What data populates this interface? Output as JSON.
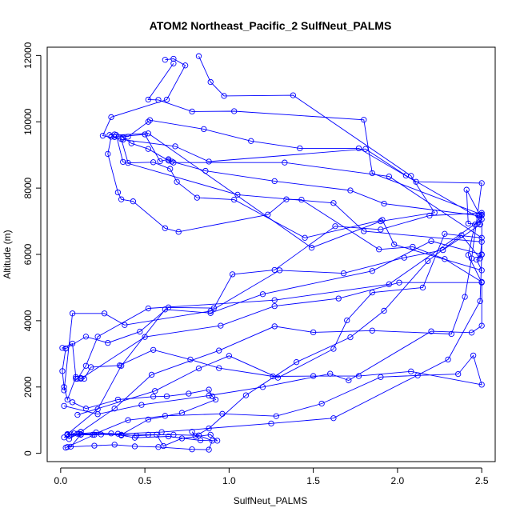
{
  "chart_data": {
    "type": "line",
    "title": "ATOM2 Northeast_Pacific_2 SulfNeut_PALMS",
    "xlabel": "SulfNeut_PALMS",
    "ylabel": "Altitude (m)",
    "xlim": [
      -0.08,
      2.58
    ],
    "ylim": [
      -250,
      12250
    ],
    "xticks": [
      0.0,
      0.5,
      1.0,
      1.5,
      2.0,
      2.5
    ],
    "xtick_labels": [
      "0.0",
      "0.5",
      "1.0",
      "1.5",
      "2.0",
      "2.5"
    ],
    "yticks": [
      0,
      2000,
      4000,
      6000,
      8000,
      10000,
      12000
    ],
    "ytick_labels": [
      "0",
      "2000",
      "4000",
      "6000",
      "8000",
      "10000",
      "12000"
    ],
    "grid": false,
    "legend": "none",
    "color": "#0000ff",
    "marker": "open-circle",
    "series": [
      {
        "x": [
          0.62,
          0.67,
          0.74,
          0.63,
          0.3,
          0.25,
          0.37,
          0.68,
          0.88,
          1.81,
          2.05,
          2.5,
          1.95,
          1.27,
          0.52,
          0.22,
          0.15,
          0.1
        ],
        "y": [
          11870,
          11900,
          11700,
          10670,
          10140,
          9580,
          9460,
          9260,
          8800,
          9180,
          8380,
          7060,
          5100,
          4620,
          4370,
          3520,
          2640,
          2250
        ]
      },
      {
        "x": [
          0.82,
          0.89,
          0.97,
          1.38,
          2.08,
          2.22,
          1.9,
          1.49,
          0.52,
          0.33,
          0.37,
          1.05,
          1.62,
          1.8,
          2.5,
          2.49,
          2.38,
          2.18,
          1.92,
          1.72,
          1.4,
          1.1,
          0.88,
          0.8,
          0.78
        ],
        "y": [
          11980,
          11200,
          10780,
          10800,
          8370,
          7260,
          7000,
          6200,
          9650,
          9600,
          8790,
          7800,
          7550,
          6700,
          6380,
          5880,
          6580,
          5800,
          4300,
          3500,
          2750,
          1750,
          750,
          520,
          650
        ]
      },
      {
        "x": [
          0.67,
          0.52,
          0.58,
          0.78,
          1.03,
          1.8,
          1.85,
          2.5,
          2.46,
          2.42,
          2.5,
          2.01,
          1.65,
          1.27,
          0.95,
          0.5,
          0.12
        ],
        "y": [
          11760,
          10670,
          10660,
          10310,
          10320,
          10060,
          8450,
          7200,
          6900,
          5980,
          5150,
          5150,
          4670,
          4440,
          3850,
          3510,
          2250
        ]
      },
      {
        "x": [
          0.29,
          0.32,
          0.4,
          0.52,
          0.53,
          0.85,
          1.13,
          1.42,
          1.77,
          2.11,
          2.5,
          2.44,
          2.4,
          2.32,
          1.85,
          1.5,
          1.27,
          0.94,
          0.54,
          0.32,
          0.12,
          0.05
        ],
        "y": [
          9600,
          9620,
          9550,
          10000,
          10050,
          9780,
          9420,
          9200,
          9200,
          8190,
          8150,
          5880,
          4720,
          3600,
          3700,
          3650,
          3830,
          3100,
          2370,
          1350,
          650,
          430
        ]
      },
      {
        "x": [
          0.37,
          0.42,
          0.52,
          0.64,
          0.86,
          1.27,
          1.72,
          1.92,
          2.48,
          2.49,
          2.42,
          2.41,
          2.49,
          2.5,
          2.5,
          2.2,
          1.85,
          1.2,
          0.89,
          0.62,
          0.36,
          0.22,
          0.04
        ],
        "y": [
          9530,
          9350,
          9180,
          8830,
          8520,
          8210,
          7930,
          7530,
          7170,
          6910,
          6930,
          7950,
          7180,
          7180,
          6000,
          6400,
          5500,
          4800,
          4230,
          4340,
          2640,
          1330,
          580
        ]
      },
      {
        "x": [
          0.32,
          0.5,
          0.59,
          0.64,
          0.66,
          0.67,
          1.33,
          1.95,
          2.5,
          2.28,
          2.15,
          1.85,
          1.7,
          1.62,
          1.29,
          1.0,
          0.82,
          0.56,
          0.1
        ],
        "y": [
          9540,
          9620,
          8810,
          8870,
          8800,
          8770,
          8770,
          8350,
          6500,
          6620,
          5000,
          4850,
          4010,
          3150,
          2280,
          2940,
          2560,
          1880,
          1160
        ]
      },
      {
        "x": [
          0.3,
          0.28,
          0.34,
          0.36,
          0.43,
          0.62,
          0.7,
          1.23,
          1.34,
          1.43,
          1.89,
          2.09,
          2.28,
          2.5,
          2.5,
          2.44,
          2.2,
          1.71,
          1.6,
          1.2,
          0.88,
          0.48,
          0.22,
          0.02
        ],
        "y": [
          9550,
          9030,
          7870,
          7660,
          7600,
          6790,
          6680,
          7200,
          7660,
          7650,
          6150,
          6230,
          5860,
          5170,
          3850,
          3640,
          3680,
          2200,
          2400,
          2000,
          1740,
          1460,
          1180,
          1430
        ]
      },
      {
        "x": [
          0.36,
          0.4,
          0.55,
          0.65,
          0.69,
          0.81,
          1.03,
          1.45,
          1.91,
          1.98,
          2.5,
          2.47,
          2.5,
          2.49,
          2.3,
          1.62,
          1.25,
          0.6,
          0.2,
          0.03
        ],
        "y": [
          9480,
          8760,
          8780,
          8580,
          8190,
          7710,
          7650,
          6500,
          7040,
          6300,
          5520,
          5840,
          5990,
          4590,
          2830,
          1060,
          900,
          640,
          560,
          170
        ]
      },
      {
        "x": [
          0.03,
          0.01,
          0.02,
          0.04,
          0.09,
          0.07,
          0.01,
          0.03,
          0.15,
          0.28,
          0.47,
          0.64,
          0.91,
          1.02,
          1.27,
          1.63,
          1.9,
          2.19,
          2.5,
          2.49,
          2.27,
          2.04,
          1.68,
          1.3,
          0.89,
          0.38,
          0.26,
          0.07,
          0.02
        ],
        "y": [
          3160,
          2480,
          2000,
          1620,
          2300,
          3310,
          3180,
          3160,
          3520,
          3330,
          3670,
          4400,
          4380,
          5400,
          5530,
          6850,
          6750,
          7170,
          7250,
          6900,
          6130,
          5900,
          5430,
          5520,
          4290,
          3870,
          4220,
          4220,
          1900
        ]
      },
      {
        "x": [
          0.09,
          0.12,
          0.14,
          0.18,
          0.35,
          0.55,
          0.77,
          0.94,
          1.26,
          1.5,
          1.77,
          2.08,
          2.5,
          2.45,
          2.36,
          2.12,
          1.9,
          1.55,
          1.28,
          0.96,
          0.62,
          0.4,
          0.19,
          0.04
        ],
        "y": [
          2250,
          2270,
          2250,
          2600,
          2650,
          3120,
          2830,
          2570,
          2320,
          2330,
          2330,
          2470,
          2070,
          2950,
          2390,
          2350,
          2300,
          1500,
          1120,
          1190,
          1130,
          1000,
          560,
          550
        ]
      },
      {
        "x": [
          0.07,
          0.15,
          0.34,
          0.55,
          0.63,
          0.76,
          0.88,
          0.9,
          0.92,
          0.72,
          0.52,
          0.36,
          0.24,
          0.11,
          0.06
        ],
        "y": [
          1540,
          1350,
          1620,
          1710,
          1720,
          1800,
          1920,
          1720,
          1620,
          1220,
          1020,
          560,
          570,
          590,
          570
        ]
      },
      {
        "x": [
          0.04,
          0.1,
          0.21,
          0.36,
          0.52,
          0.67,
          0.82,
          0.9,
          0.88,
          0.78,
          0.58,
          0.44,
          0.32,
          0.2,
          0.04
        ],
        "y": [
          570,
          590,
          630,
          540,
          560,
          560,
          540,
          380,
          110,
          120,
          190,
          210,
          260,
          230,
          190
        ]
      },
      {
        "x": [
          0.02,
          0.05,
          0.08,
          0.12,
          0.34,
          0.45,
          0.57,
          0.61,
          0.72,
          0.89,
          0.93,
          0.83,
          0.64,
          0.44,
          0.3,
          0.12,
          0.06
        ],
        "y": [
          480,
          520,
          600,
          560,
          590,
          530,
          560,
          220,
          450,
          560,
          380,
          390,
          510,
          470,
          600,
          570,
          200
        ]
      }
    ]
  }
}
